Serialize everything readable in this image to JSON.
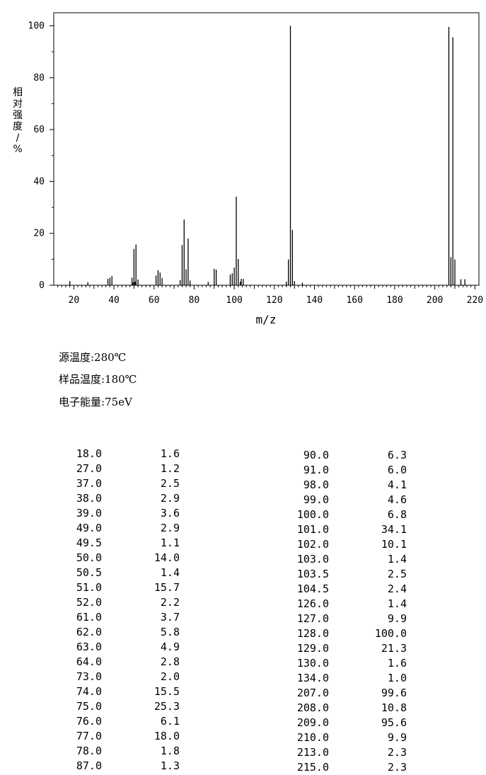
{
  "chart_data": {
    "type": "bar",
    "xlabel": "m/z",
    "ylabel": "相对强度/%",
    "xlim": [
      10,
      222
    ],
    "ylim": [
      0,
      100
    ],
    "xticks": [
      20,
      40,
      60,
      80,
      100,
      120,
      140,
      160,
      180,
      200,
      220
    ],
    "yticks": [
      0,
      20,
      40,
      60,
      80,
      100
    ],
    "grid": false,
    "x": [
      18.0,
      27.0,
      37.0,
      38.0,
      39.0,
      49.0,
      49.5,
      50.0,
      50.5,
      51.0,
      52.0,
      61.0,
      62.0,
      63.0,
      64.0,
      73.0,
      74.0,
      75.0,
      76.0,
      77.0,
      78.0,
      87.0,
      90.0,
      91.0,
      98.0,
      99.0,
      100.0,
      101.0,
      102.0,
      103.0,
      103.5,
      104.5,
      126.0,
      127.0,
      128.0,
      129.0,
      130.0,
      134.0,
      207.0,
      208.0,
      209.0,
      210.0,
      213.0,
      215.0
    ],
    "y": [
      1.6,
      1.2,
      2.5,
      2.9,
      3.6,
      2.9,
      1.1,
      14.0,
      1.4,
      15.7,
      2.2,
      3.7,
      5.8,
      4.9,
      2.8,
      2.0,
      15.5,
      25.3,
      6.1,
      18.0,
      1.8,
      1.3,
      6.3,
      6.0,
      4.1,
      4.6,
      6.8,
      34.1,
      10.1,
      1.4,
      2.5,
      2.4,
      1.4,
      9.9,
      100.0,
      21.3,
      1.6,
      1.0,
      99.6,
      10.8,
      95.6,
      9.9,
      2.3,
      2.3
    ]
  },
  "conditions": [
    "源温度:280℃",
    "样品温度:180℃",
    "电子能量:75eV"
  ],
  "peak_table": {
    "left": [
      [
        "18.0",
        "1.6"
      ],
      [
        "27.0",
        "1.2"
      ],
      [
        "37.0",
        "2.5"
      ],
      [
        "38.0",
        "2.9"
      ],
      [
        "39.0",
        "3.6"
      ],
      [
        "49.0",
        "2.9"
      ],
      [
        "49.5",
        "1.1"
      ],
      [
        "50.0",
        "14.0"
      ],
      [
        "50.5",
        "1.4"
      ],
      [
        "51.0",
        "15.7"
      ],
      [
        "52.0",
        "2.2"
      ],
      [
        "61.0",
        "3.7"
      ],
      [
        "62.0",
        "5.8"
      ],
      [
        "63.0",
        "4.9"
      ],
      [
        "64.0",
        "2.8"
      ],
      [
        "73.0",
        "2.0"
      ],
      [
        "74.0",
        "15.5"
      ],
      [
        "75.0",
        "25.3"
      ],
      [
        "76.0",
        "6.1"
      ],
      [
        "77.0",
        "18.0"
      ],
      [
        "78.0",
        "1.8"
      ],
      [
        "87.0",
        "1.3"
      ]
    ],
    "right": [
      [
        "90.0",
        "6.3"
      ],
      [
        "91.0",
        "6.0"
      ],
      [
        "98.0",
        "4.1"
      ],
      [
        "99.0",
        "4.6"
      ],
      [
        "100.0",
        "6.8"
      ],
      [
        "101.0",
        "34.1"
      ],
      [
        "102.0",
        "10.1"
      ],
      [
        "103.0",
        "1.4"
      ],
      [
        "103.5",
        "2.5"
      ],
      [
        "104.5",
        "2.4"
      ],
      [
        "126.0",
        "1.4"
      ],
      [
        "127.0",
        "9.9"
      ],
      [
        "128.0",
        "100.0"
      ],
      [
        "129.0",
        "21.3"
      ],
      [
        "130.0",
        "1.6"
      ],
      [
        "134.0",
        "1.0"
      ],
      [
        "207.0",
        "99.6"
      ],
      [
        "208.0",
        "10.8"
      ],
      [
        "209.0",
        "95.6"
      ],
      [
        "210.0",
        "9.9"
      ],
      [
        "213.0",
        "2.3"
      ],
      [
        "215.0",
        "2.3"
      ]
    ]
  }
}
